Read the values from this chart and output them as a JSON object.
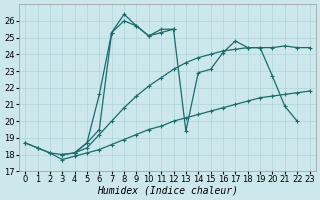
{
  "bg_color": "#cce8ec",
  "grid_color": "#b0d4d8",
  "line_color": "#1a6b6b",
  "xlabel": "Humidex (Indice chaleur)",
  "series": [
    {
      "x": [
        0,
        1,
        2,
        3,
        4,
        5,
        6,
        7,
        8,
        9,
        10,
        11,
        12,
        13,
        14,
        15,
        16,
        17,
        18,
        19,
        20,
        21,
        22,
        23
      ],
      "y": [
        18.7,
        18.4,
        18.1,
        17.7,
        17.9,
        18.1,
        18.3,
        18.6,
        18.9,
        19.2,
        19.5,
        19.7,
        20.0,
        20.2,
        20.4,
        20.6,
        20.8,
        21.0,
        21.2,
        21.4,
        21.5,
        21.6,
        21.7,
        21.8
      ]
    },
    {
      "x": [
        0,
        1,
        2,
        3,
        4,
        5,
        6,
        7,
        8,
        9,
        10,
        11,
        12,
        13,
        14,
        15,
        16,
        17,
        18,
        19,
        20,
        21,
        22,
        23
      ],
      "y": [
        18.7,
        18.4,
        18.1,
        18.0,
        18.1,
        18.4,
        19.2,
        20.0,
        20.8,
        21.5,
        22.1,
        22.6,
        23.1,
        23.5,
        23.8,
        24.0,
        24.2,
        24.3,
        24.4,
        24.4,
        24.4,
        24.5,
        24.4,
        24.4
      ]
    },
    {
      "x": [
        3,
        4,
        5,
        6,
        7,
        8,
        9,
        10,
        11,
        12,
        13,
        14,
        15,
        16,
        17,
        18,
        19,
        20,
        21,
        22
      ],
      "y": [
        18.0,
        18.1,
        18.7,
        21.6,
        25.3,
        26.0,
        25.7,
        25.1,
        25.3,
        25.5,
        19.4,
        22.9,
        23.1,
        24.1,
        24.8,
        24.4,
        24.4,
        22.7,
        20.9,
        20.0
      ]
    },
    {
      "x": [
        4,
        5,
        6,
        7,
        8,
        9,
        10,
        11,
        12
      ],
      "y": [
        18.1,
        18.7,
        19.5,
        25.3,
        26.4,
        25.7,
        25.1,
        25.5,
        25.5
      ]
    }
  ],
  "xlim": [
    -0.5,
    23.5
  ],
  "ylim": [
    17,
    27
  ],
  "yticks": [
    17,
    18,
    19,
    20,
    21,
    22,
    23,
    24,
    25,
    26
  ],
  "xticks": [
    0,
    1,
    2,
    3,
    4,
    5,
    6,
    7,
    8,
    9,
    10,
    11,
    12,
    13,
    14,
    15,
    16,
    17,
    18,
    19,
    20,
    21,
    22,
    23
  ],
  "xlabel_fontsize": 7,
  "tick_fontsize": 6
}
